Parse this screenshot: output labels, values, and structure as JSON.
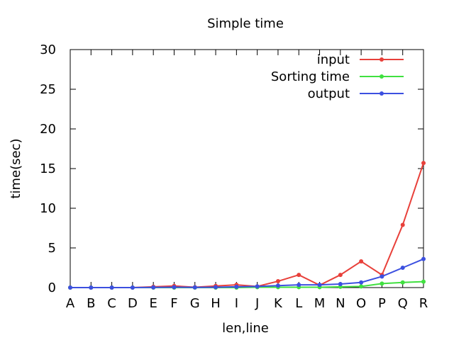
{
  "chart_data": {
    "type": "line",
    "title": "Simple time",
    "xlabel": "len,line",
    "ylabel": "time(sec)",
    "categories": [
      "A",
      "B",
      "C",
      "D",
      "E",
      "F",
      "G",
      "H",
      "I",
      "J",
      "K",
      "L",
      "M",
      "N",
      "O",
      "P",
      "Q",
      "R"
    ],
    "ylim": [
      0,
      30
    ],
    "yticks": [
      0,
      5,
      10,
      15,
      20,
      25,
      30
    ],
    "grid": false,
    "legend_position": "top-right",
    "series": [
      {
        "name": "input",
        "color": "#e8403a",
        "values": [
          0,
          0,
          0,
          0,
          0.1,
          0.2,
          0.05,
          0.2,
          0.35,
          0.15,
          0.8,
          1.6,
          0.3,
          1.6,
          3.3,
          1.6,
          7.9,
          15.7
        ]
      },
      {
        "name": "Sorting time",
        "color": "#40e040",
        "values": [
          0,
          0,
          0,
          0,
          0,
          0,
          0,
          0,
          0,
          0.05,
          0.05,
          0.05,
          0.05,
          0.1,
          0.15,
          0.5,
          0.65,
          0.75
        ]
      },
      {
        "name": "output",
        "color": "#3c50e0",
        "values": [
          0,
          0,
          0,
          0,
          0.02,
          0.05,
          0.02,
          0.05,
          0.1,
          0.15,
          0.25,
          0.35,
          0.35,
          0.45,
          0.65,
          1.4,
          2.5,
          3.6
        ]
      }
    ]
  }
}
